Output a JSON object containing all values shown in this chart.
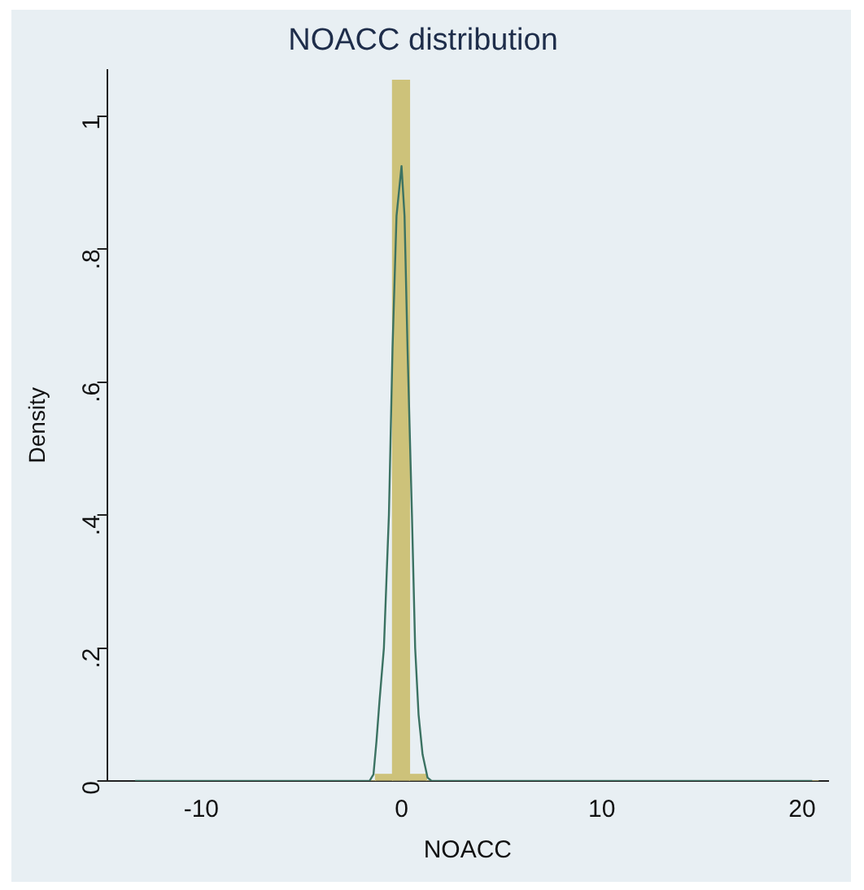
{
  "chart_data": {
    "type": "histogram",
    "title": "NOACC distribution",
    "xlabel": "NOACC",
    "ylabel": "Density",
    "bins": [
      -13.2,
      -12.35,
      -11.5,
      -10.65,
      -9.8,
      -8.95,
      -8.1,
      -7.25,
      -6.4,
      -5.55,
      -4.7,
      -3.85,
      -3,
      -2.15,
      -1.3,
      -0.45,
      0.4,
      1.25,
      2.1,
      2.95,
      3.8,
      4.65,
      5.5,
      6.35,
      7.2,
      8.05,
      8.9,
      9.75,
      10.6,
      11.45,
      12.3,
      13.15,
      14,
      14.85,
      15.7,
      16.55,
      17.4,
      18.25,
      19.1,
      19.95,
      20.8
    ],
    "values": [
      0,
      0,
      0,
      0,
      0,
      0,
      0,
      0,
      0,
      0,
      0,
      0,
      0,
      0,
      0.01,
      1.054,
      0.01,
      0,
      0,
      0,
      0,
      0,
      0,
      0,
      0,
      0,
      0,
      0,
      0,
      0,
      0,
      0,
      0,
      0,
      0,
      0,
      0,
      0,
      0,
      0
    ],
    "color": "#cdc27a",
    "series": [
      {
        "type": "line",
        "color": "#3b7262",
        "x": [
          -13.3,
          -1.6,
          -1.4,
          -1.25,
          -1.1,
          -0.88,
          -0.63,
          -0.45,
          -0.25,
          0,
          0.15,
          0.3,
          0.52,
          0.68,
          0.85,
          1.05,
          1.3,
          1.5,
          20.5
        ],
        "values": [
          0,
          0,
          0.01,
          0.06,
          0.12,
          0.2,
          0.4,
          0.65,
          0.85,
          0.925,
          0.85,
          0.65,
          0.4,
          0.2,
          0.1,
          0.04,
          0.005,
          0,
          0
        ]
      }
    ],
    "xlim": [
      -14.7,
      21.3
    ],
    "xticks": [
      -10,
      0,
      10,
      20
    ],
    "ylim": [
      0,
      1.07
    ],
    "yticks": [
      0,
      {
        "value": 0.2,
        "label": ".2"
      },
      {
        "value": 0.4,
        "label": ".4"
      },
      {
        "value": 0.6,
        "label": ".6"
      },
      {
        "value": 0.8,
        "label": ".8"
      },
      1
    ],
    "grid": false,
    "legend": false
  }
}
